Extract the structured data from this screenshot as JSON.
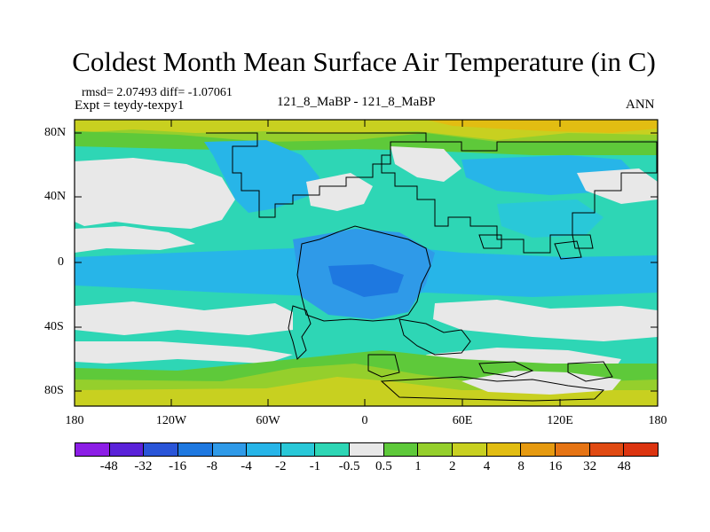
{
  "header": {
    "title": "Coldest Month Mean Surface Air Temperature (in C)",
    "stats": "rmsd= 2.07493 diff= -1.07061",
    "experiment": "Expt = teydy-texpy1",
    "comparison": "121_8_MaBP - 121_8_MaBP",
    "season": "ANN"
  },
  "axes": {
    "y_ticks": [
      "80N",
      "40N",
      "0",
      "40S",
      "80S"
    ],
    "x_ticks": [
      "180",
      "120W",
      "60W",
      "0",
      "60E",
      "120E",
      "180"
    ]
  },
  "colorbar": {
    "labels": [
      "-48",
      "-32",
      "-16",
      "-8",
      "-4",
      "-2",
      "-1",
      "-0.5",
      "0.5",
      "1",
      "2",
      "4",
      "8",
      "16",
      "32",
      "48"
    ],
    "colors": [
      "#8c1ee6",
      "#5a22d9",
      "#2a55d8",
      "#1e78e0",
      "#2f9ae8",
      "#27b5e8",
      "#29c8d8",
      "#2ed6b5",
      "#e8e8e8",
      "#5ec93a",
      "#95cf2c",
      "#c8d020",
      "#e2bd12",
      "#e69a10",
      "#e67414",
      "#e04a12",
      "#dc3410"
    ]
  },
  "map_colors": {
    "neutral": "#e8e8e8",
    "deep_blue": "#1e78e0",
    "blue": "#2f9ae8",
    "light_blue": "#27b5e8",
    "cyan": "#29c8d8",
    "aqua": "#2ed6b5",
    "green": "#5ec93a",
    "yellow_green": "#95cf2c",
    "yellow": "#c8d020",
    "orange": "#e2bd12"
  }
}
